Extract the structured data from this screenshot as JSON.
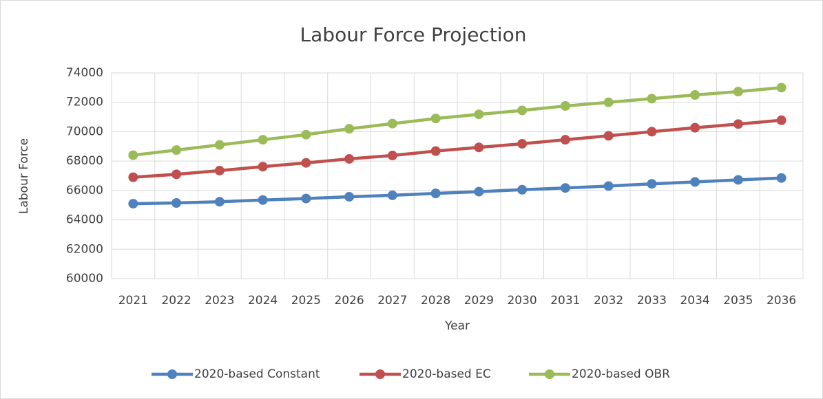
{
  "chart_data": {
    "type": "line",
    "title": "Labour Force Projection",
    "x_label": "Year",
    "y_label": "Labour Force",
    "categories": [
      "2021",
      "2022",
      "2023",
      "2024",
      "2025",
      "2026",
      "2027",
      "2028",
      "2029",
      "2030",
      "2031",
      "2032",
      "2033",
      "2034",
      "2035",
      "2036"
    ],
    "series": [
      {
        "name": "2020-based Constant",
        "color": "#4f81bd",
        "values": [
          65100,
          65150,
          65230,
          65350,
          65450,
          65570,
          65670,
          65800,
          65920,
          66050,
          66170,
          66300,
          66450,
          66580,
          66720,
          66850
        ]
      },
      {
        "name": "2020-based EC",
        "color": "#c0504d",
        "values": [
          66900,
          67100,
          67350,
          67620,
          67880,
          68150,
          68380,
          68680,
          68930,
          69180,
          69450,
          69720,
          70000,
          70270,
          70520,
          70780
        ]
      },
      {
        "name": "2020-based OBR",
        "color": "#9bbb59",
        "values": [
          68400,
          68750,
          69100,
          69450,
          69800,
          70200,
          70550,
          70900,
          71180,
          71450,
          71750,
          72000,
          72250,
          72500,
          72730,
          73000
        ]
      }
    ],
    "ylim": [
      60000,
      74000
    ],
    "yticks": [
      60000,
      62000,
      64000,
      66000,
      68000,
      70000,
      72000,
      74000
    ],
    "grid": true,
    "legend": "bottom"
  }
}
